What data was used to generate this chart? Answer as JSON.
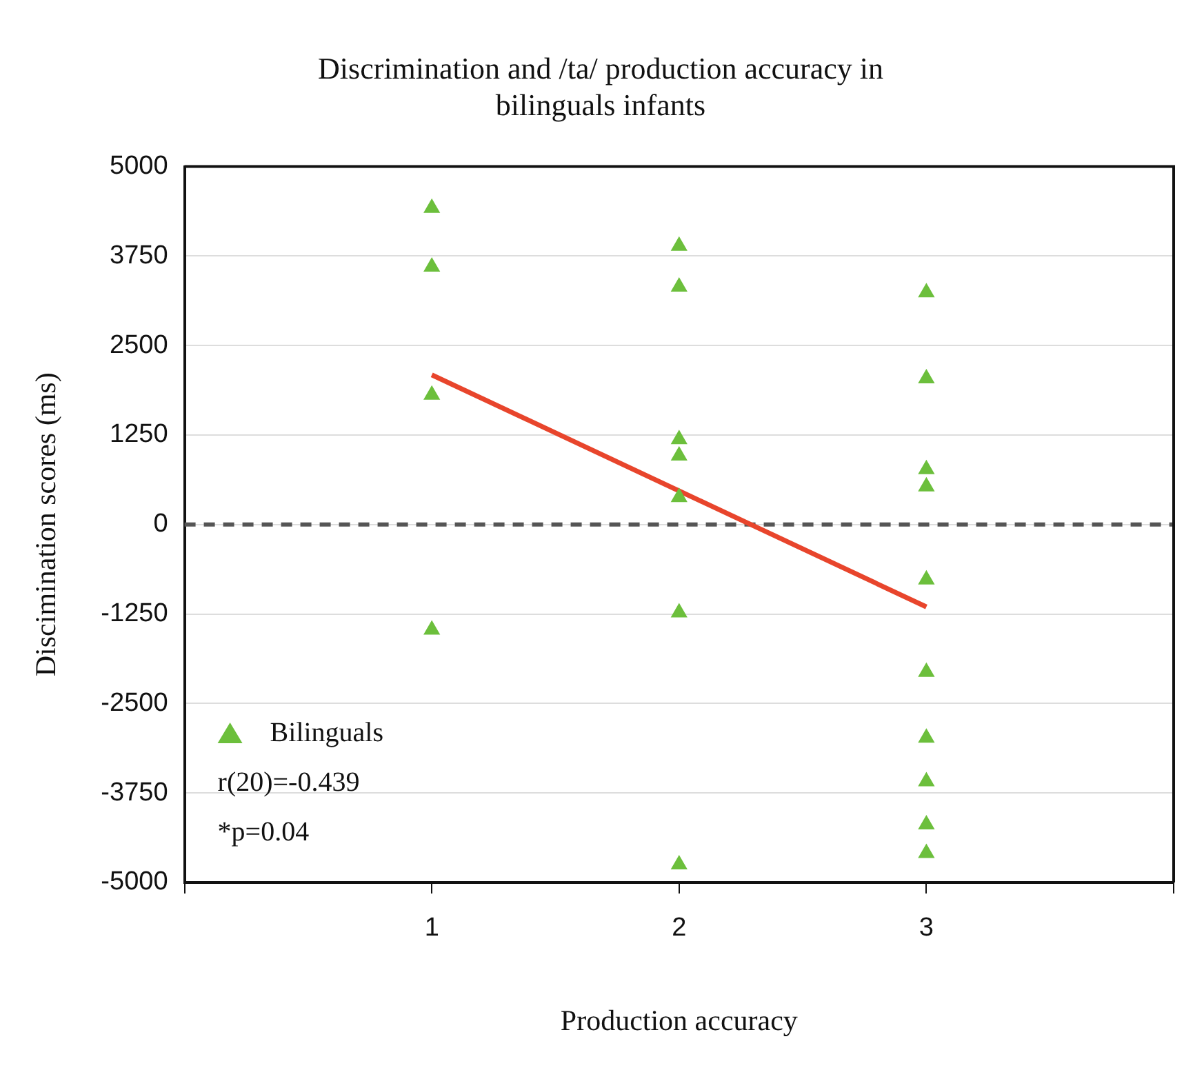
{
  "chart_data": {
    "type": "scatter",
    "title": "Discrimination and /ta/ production accuracy in bilinguals infants",
    "xlabel": "Production accuracy",
    "ylabel": "Discimination scores (ms)",
    "xlim": [
      0,
      4
    ],
    "xticks": [
      {
        "value": 0,
        "label": null
      },
      1,
      2,
      3,
      {
        "value": 4,
        "label": null
      }
    ],
    "ylim": [
      -5000,
      5000
    ],
    "yticks": [
      -5000,
      -3750,
      -2500,
      -1250,
      0,
      1250,
      2500,
      3750,
      5000
    ],
    "grid": "y",
    "legend": "bottom left",
    "marker": "triangle",
    "series": [
      {
        "name": "Bilinguals",
        "color": "#6cbf3c",
        "x": [
          1,
          1,
          1,
          1,
          2,
          2,
          2,
          2,
          2,
          2,
          2,
          3,
          3,
          3,
          3,
          3,
          3,
          3,
          3,
          3,
          3
        ],
        "values": [
          4420,
          3600,
          1810,
          -1470,
          3890,
          3320,
          1190,
          960,
          380,
          -1230,
          -4750,
          3240,
          2040,
          770,
          530,
          -770,
          -2060,
          -2980,
          -3590,
          -4190,
          -4590
        ]
      },
      {
        "type": "line",
        "color": "#e8452c",
        "x": [
          1,
          3
        ],
        "values": [
          2090,
          -1150
        ],
        "marker": "none"
      }
    ],
    "ref_lines": [
      {
        "axis": "y",
        "value": 0,
        "color": "#555555",
        "line_style": "dashed"
      }
    ],
    "annotations": [
      "r(20)=-0.439",
      "*p=0.04"
    ]
  }
}
